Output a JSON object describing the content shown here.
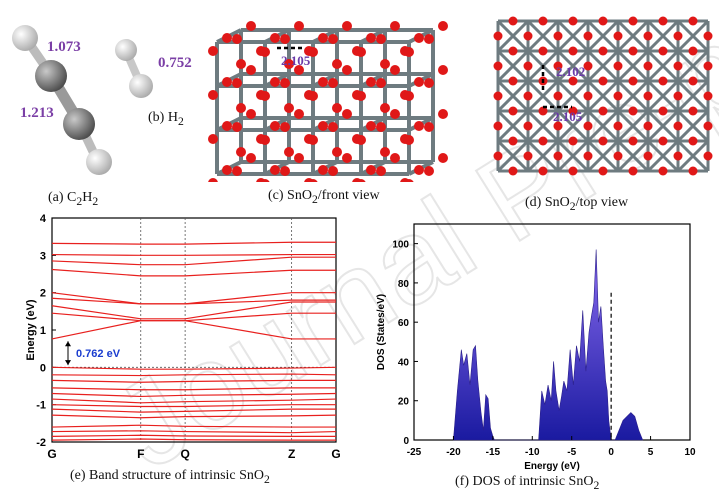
{
  "figure": {
    "panel_a": {
      "caption_prefix": "(a) C",
      "caption_sub1": "2",
      "caption_mid": "H",
      "caption_sub2": "2",
      "bond_ch": "1.073",
      "bond_cc": "1.213"
    },
    "panel_b": {
      "caption_prefix": "(b) H",
      "caption_sub": "2",
      "bond_hh": "0.752"
    },
    "panel_c": {
      "caption_prefix": "(c) SnO",
      "caption_sub": "2",
      "caption_suffix": "/front view",
      "bond_label": "2.105"
    },
    "panel_d": {
      "caption_prefix": "(d) SnO",
      "caption_sub": "2",
      "caption_suffix": "/top view",
      "bond_label_1": "2.102",
      "bond_label_2": "2.105"
    },
    "panel_e": {
      "caption_prefix": "(e) Band structure of intrinsic SnO",
      "caption_sub": "2"
    },
    "panel_f": {
      "caption_prefix": "(f) DOS of intrinsic SnO",
      "caption_sub": "2"
    },
    "watermark_text": "Journal Pre-proof",
    "colors": {
      "band_line": "#e8201e",
      "dos_fill_top": "#8a6cf0",
      "dos_fill_bottom": "#1a1aa0",
      "bond_label": "#7b3fa6",
      "gap_label": "#1a3ccf",
      "oxygen": "#e01818",
      "tin": "#6e7b80"
    }
  },
  "chart_data": [
    {
      "type": "line",
      "title": "",
      "xlabel": "",
      "ylabel": "Energy (eV)",
      "ylim": [
        -2,
        4
      ],
      "yticks": [
        "-2",
        "-1",
        "0",
        "1",
        "2",
        "3",
        "4"
      ],
      "kpoints": [
        "G",
        "F",
        "Q",
        "Z",
        "G"
      ],
      "kpoint_positions": [
        0,
        1,
        1.5,
        2.7,
        3.2
      ],
      "annotation": "0.762 eV",
      "band_gap_ev": 0.762,
      "conduction_bands": [
        {
          "name": "",
          "values": [
            0.76,
            1.25,
            1.25,
            0.76,
            0.76
          ]
        },
        {
          "name": "",
          "values": [
            1.45,
            1.25,
            1.25,
            1.45,
            1.45
          ]
        },
        {
          "name": "",
          "values": [
            1.65,
            1.3,
            1.3,
            1.75,
            1.75
          ]
        },
        {
          "name": "",
          "values": [
            1.85,
            1.7,
            1.7,
            1.8,
            1.8
          ]
        },
        {
          "name": "",
          "values": [
            2.0,
            1.7,
            1.7,
            2.0,
            2.0
          ]
        },
        {
          "name": "",
          "values": [
            2.62,
            2.45,
            2.45,
            2.6,
            2.6
          ]
        },
        {
          "name": "",
          "values": [
            2.85,
            2.75,
            2.75,
            2.95,
            2.95
          ]
        },
        {
          "name": "",
          "values": [
            3.02,
            3.0,
            3.0,
            3.02,
            3.02
          ]
        },
        {
          "name": "",
          "values": [
            3.32,
            3.3,
            3.3,
            3.35,
            3.35
          ]
        }
      ],
      "valence_bands": [
        {
          "name": "",
          "values": [
            0.0,
            -0.05,
            -0.05,
            -0.02,
            0.0
          ]
        },
        {
          "name": "",
          "values": [
            -0.2,
            -0.22,
            -0.2,
            -0.18,
            -0.2
          ]
        },
        {
          "name": "",
          "values": [
            -0.35,
            -0.4,
            -0.38,
            -0.35,
            -0.35
          ]
        },
        {
          "name": "",
          "values": [
            -0.55,
            -0.6,
            -0.6,
            -0.55,
            -0.55
          ]
        },
        {
          "name": "",
          "values": [
            -0.7,
            -0.78,
            -0.75,
            -0.72,
            -0.7
          ]
        },
        {
          "name": "",
          "values": [
            -0.85,
            -0.95,
            -0.92,
            -0.88,
            -0.85
          ]
        },
        {
          "name": "",
          "values": [
            -1.0,
            -1.05,
            -1.05,
            -1.0,
            -1.0
          ]
        },
        {
          "name": "",
          "values": [
            -1.12,
            -1.2,
            -1.18,
            -1.12,
            -1.12
          ]
        },
        {
          "name": "",
          "values": [
            -1.28,
            -1.35,
            -1.32,
            -1.3,
            -1.28
          ]
        },
        {
          "name": "",
          "values": [
            -1.6,
            -1.55,
            -1.58,
            -1.6,
            -1.6
          ]
        },
        {
          "name": "",
          "values": [
            -1.72,
            -1.7,
            -1.72,
            -1.75,
            -1.72
          ]
        },
        {
          "name": "",
          "values": [
            -1.85,
            -1.82,
            -1.84,
            -1.85,
            -1.85
          ]
        },
        {
          "name": "",
          "values": [
            -1.95,
            -1.92,
            -1.94,
            -1.95,
            -1.95
          ]
        }
      ]
    },
    {
      "type": "area",
      "title": "",
      "xlabel": "Energy (eV)",
      "ylabel": "DOS (States/eV)",
      "xlim": [
        -25,
        10
      ],
      "ylim": [
        0,
        110
      ],
      "xticks": [
        "-25",
        "-20",
        "-15",
        "-10",
        "-5",
        "0",
        "5",
        "10"
      ],
      "yticks": [
        "0",
        "20",
        "40",
        "60",
        "80",
        "100"
      ],
      "fermi_level": 0,
      "x": [
        -20,
        -19.5,
        -19,
        -18.7,
        -18.3,
        -17.9,
        -17.5,
        -17.2,
        -16.9,
        -16.5,
        -16.2,
        -15.9,
        -15.6,
        -15.3,
        -15.0,
        -14.8,
        -9.2,
        -8.8,
        -8.4,
        -8.0,
        -7.6,
        -7.3,
        -7.0,
        -6.6,
        -6.3,
        -6.0,
        -5.6,
        -5.2,
        -4.8,
        -4.4,
        -4.0,
        -3.6,
        -3.2,
        -2.8,
        -2.5,
        -2.2,
        -1.9,
        -1.6,
        -1.3,
        -1.0,
        -0.7,
        -0.5,
        -0.3,
        0,
        0.5,
        1.0,
        1.5,
        2.0,
        2.5,
        3.0,
        3.5,
        4.0
      ],
      "values": [
        0,
        25,
        46,
        38,
        44,
        28,
        46,
        48,
        30,
        14,
        5,
        23,
        21,
        6,
        2,
        0,
        0,
        25,
        18,
        28,
        20,
        40,
        25,
        15,
        22,
        30,
        25,
        46,
        28,
        48,
        40,
        66,
        35,
        55,
        63,
        70,
        97,
        60,
        68,
        48,
        30,
        25,
        10,
        0,
        0,
        5,
        10,
        12,
        14,
        12,
        5,
        0
      ]
    }
  ]
}
